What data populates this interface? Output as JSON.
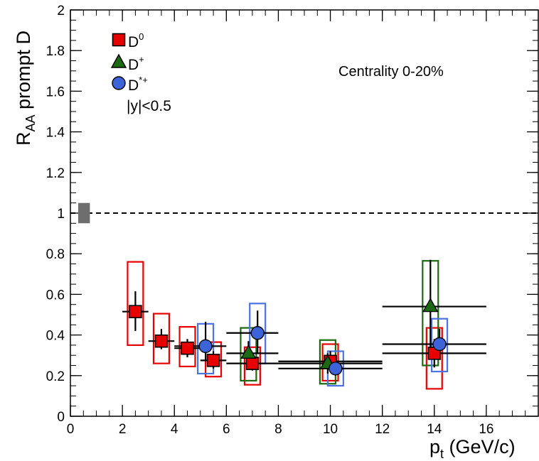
{
  "chart_data": {
    "type": "scatter",
    "xlim": [
      0,
      18
    ],
    "ylim": [
      0,
      2
    ],
    "x_ticks": [
      "0",
      "2",
      "4",
      "6",
      "8",
      "10",
      "12",
      "14",
      "16"
    ],
    "y_ticks": [
      "0",
      "0.2",
      "0.4",
      "0.6",
      "0.8",
      "1",
      "1.2",
      "1.4",
      "1.6",
      "1.8",
      "2"
    ],
    "xlabel": {
      "main": "p",
      "sub": "t",
      "rest": " (GeV/c)"
    },
    "ylabel": {
      "main": "R",
      "sub": "AA",
      "rest": " prompt D"
    },
    "reference_line": 1,
    "normalization_box": {
      "x": [
        0.3,
        0.75
      ],
      "y": [
        0.95,
        1.05
      ],
      "color": "#6e6e6e"
    },
    "annotation": "Centrality 0-20%",
    "rapidity_label": "|y|<0.5",
    "grid": false,
    "legend_position": "top-left",
    "series": [
      {
        "name": "D0",
        "label_base": "D",
        "label_sup": "0",
        "marker": "square",
        "color": "#e80000",
        "box_color": "#e80000",
        "points": [
          {
            "x": 2.5,
            "y": 0.515,
            "xlo": 2.0,
            "xhi": 3.0,
            "ylo": 0.42,
            "yhi": 0.615,
            "sys": [
              0.35,
              0.76
            ]
          },
          {
            "x": 3.5,
            "y": 0.37,
            "xlo": 3.0,
            "xhi": 4.0,
            "ylo": 0.33,
            "yhi": 0.43,
            "sys": [
              0.26,
              0.505
            ]
          },
          {
            "x": 4.5,
            "y": 0.335,
            "xlo": 4.0,
            "xhi": 5.0,
            "ylo": 0.29,
            "yhi": 0.38,
            "sys": [
              0.245,
              0.44
            ]
          },
          {
            "x": 5.5,
            "y": 0.275,
            "xlo": 5.0,
            "xhi": 6.0,
            "ylo": 0.235,
            "yhi": 0.32,
            "sys": [
              0.195,
              0.365
            ]
          },
          {
            "x": 7.0,
            "y": 0.26,
            "xlo": 6.0,
            "xhi": 8.0,
            "ylo": 0.225,
            "yhi": 0.3,
            "sys": [
              0.155,
              0.34
            ]
          },
          {
            "x": 10.0,
            "y": 0.27,
            "xlo": 8.0,
            "xhi": 12.0,
            "ylo": 0.22,
            "yhi": 0.32,
            "sys": [
              0.175,
              0.355
            ]
          },
          {
            "x": 14.0,
            "y": 0.31,
            "xlo": 12.0,
            "xhi": 16.0,
            "ylo": 0.24,
            "yhi": 0.38,
            "sys": [
              0.135,
              0.435
            ]
          }
        ]
      },
      {
        "name": "D+",
        "label_base": "D",
        "label_sup": "+",
        "marker": "triangle",
        "color": "#1b6a12",
        "box_color": "#1b6a12",
        "points": [
          {
            "x": 6.85,
            "y": 0.31,
            "xlo": 6.0,
            "xhi": 8.0,
            "ylo": 0.24,
            "yhi": 0.37,
            "sys": [
              0.175,
              0.435
            ]
          },
          {
            "x": 9.9,
            "y": 0.26,
            "xlo": 8.0,
            "xhi": 12.0,
            "ylo": 0.21,
            "yhi": 0.31,
            "sys": [
              0.16,
              0.375
            ]
          },
          {
            "x": 13.85,
            "y": 0.54,
            "xlo": 12.0,
            "xhi": 16.0,
            "ylo": 0.31,
            "yhi": 0.77,
            "sys": [
              0.25,
              0.765
            ]
          }
        ]
      },
      {
        "name": "D*+",
        "label_base": "D",
        "label_sup": "*+",
        "marker": "circle",
        "color": "#3d63d9",
        "box_color": "#4a74e4",
        "points": [
          {
            "x": 5.2,
            "y": 0.345,
            "xlo": 4.0,
            "xhi": 6.0,
            "ylo": 0.27,
            "yhi": 0.465,
            "sys": [
              0.21,
              0.455
            ]
          },
          {
            "x": 7.2,
            "y": 0.41,
            "xlo": 6.0,
            "xhi": 8.0,
            "ylo": 0.31,
            "yhi": 0.52,
            "sys": [
              0.26,
              0.555
            ]
          },
          {
            "x": 10.2,
            "y": 0.235,
            "xlo": 8.0,
            "xhi": 12.0,
            "ylo": 0.2,
            "yhi": 0.28,
            "sys": [
              0.15,
              0.32
            ]
          },
          {
            "x": 14.2,
            "y": 0.355,
            "xlo": 12.0,
            "xhi": 16.0,
            "ylo": 0.29,
            "yhi": 0.43,
            "sys": [
              0.22,
              0.48
            ]
          }
        ]
      }
    ]
  }
}
